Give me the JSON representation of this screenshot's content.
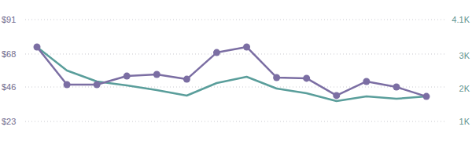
{
  "chart_data": {
    "type": "line",
    "ylim": [
      23,
      91
    ],
    "yticks": [
      {
        "value": 23,
        "label": "$23"
      },
      {
        "value": 46,
        "label": "$46"
      },
      {
        "value": 68,
        "label": "$68"
      },
      {
        "value": 91,
        "label": "$91"
      }
    ],
    "y2lim": [
      1000,
      4100
    ],
    "y2ticks": [
      {
        "value": 1000,
        "label": "1K"
      },
      {
        "value": 2000,
        "label": "2K"
      },
      {
        "value": 3000,
        "label": "3K"
      },
      {
        "value": 4100,
        "label": "4.1K"
      }
    ],
    "grid": true,
    "series": [
      {
        "color": "#7b6ea3",
        "marker": "circle",
        "values": [
          72.7,
          47.6,
          47.6,
          53.3,
          54.4,
          51.2,
          69.0,
          72.7,
          52.3,
          51.8,
          40.3,
          49.7,
          46.0,
          39.7
        ]
      },
      {
        "color": "#5a9e9b",
        "axis": "y2",
        "values": [
          3265,
          2550,
          2216,
          2097,
          1954,
          1787,
          2168,
          2359,
          2001,
          1858,
          1620,
          1763,
          1691,
          1763
        ]
      }
    ]
  }
}
